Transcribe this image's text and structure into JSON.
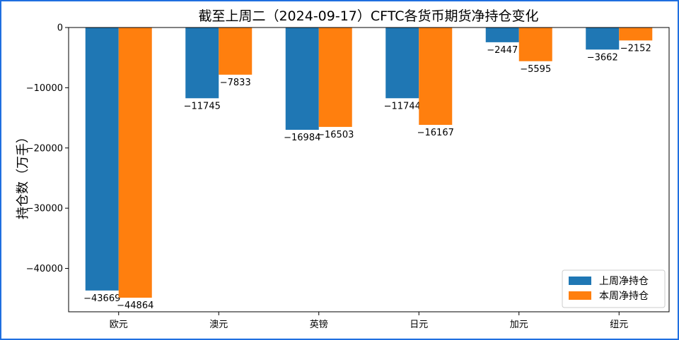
{
  "chart_data": {
    "type": "bar",
    "title": "截至上周二（2024-09-17）CFTC各货币期货净持仓变化",
    "xlabel": "",
    "ylabel": "持仓数（万手）",
    "categories": [
      "欧元",
      "澳元",
      "英镑",
      "日元",
      "加元",
      "纽元"
    ],
    "series": [
      {
        "name": "上周净持仓",
        "color": "#1f77b4",
        "values": [
          -43669,
          -11745,
          -16984,
          -11744,
          -2447,
          -3662
        ]
      },
      {
        "name": "本周净持仓",
        "color": "#ff7f0e",
        "values": [
          -44864,
          -7833,
          -16503,
          -16167,
          -5595,
          -2152
        ]
      }
    ],
    "ylim": [
      -47200,
      0
    ],
    "yticks": [
      0,
      -10000,
      -20000,
      -30000,
      -40000
    ],
    "grid": false,
    "legend": "bottom-right"
  }
}
